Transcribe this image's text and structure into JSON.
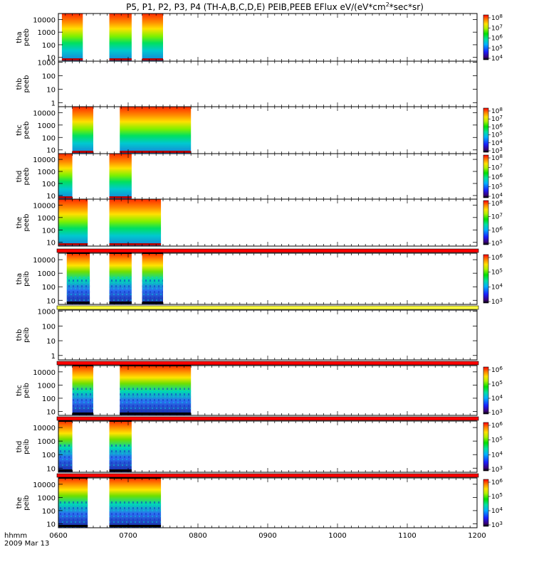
{
  "chart_data": {
    "type": "heatmap",
    "title": "P5, P1, P2, P3, P4 (TH-A,B,C,D,E) PEIB,PEEB EFlux eV/(eV*cm^2*sec*sr)",
    "title_parts": {
      "main": "P5, P1, P2, P3, P4 (TH-A,B,C,D,E) PEIB,PEEB EFlux eV/(eV*cm",
      "sup": "2",
      "tail": "*sec*sr)"
    },
    "x_axis": {
      "tick_labels": [
        "0600",
        "0700",
        "0800",
        "0900",
        "1000",
        "1100",
        "1200"
      ],
      "tick_values_hours": [
        6,
        7,
        8,
        9,
        10,
        11,
        12
      ],
      "xlim_hours": [
        6,
        12
      ],
      "label": "hhmm",
      "date": "2009 Mar 13"
    },
    "colormap": "rainbow",
    "panels": [
      {
        "id": "tha-peeb",
        "ylabel": [
          "tha",
          "peeb"
        ],
        "y_ticks": [
          "10000",
          "1000",
          "100",
          "10"
        ],
        "ylim": [
          5,
          30000
        ],
        "colorbar": {
          "tick_labels": [
            "10^8",
            "10^7",
            "10^6",
            "10^5",
            "10^4"
          ]
        },
        "data_intervals_hours": [
          [
            6.05,
            6.35
          ],
          [
            6.73,
            7.05
          ],
          [
            7.2,
            7.5
          ]
        ]
      },
      {
        "id": "thb-peeb",
        "ylabel": [
          "thb",
          "peeb"
        ],
        "y_ticks": [
          "1000",
          "100",
          "10",
          "1"
        ],
        "ylim": [
          0.5,
          1200
        ],
        "colorbar": null,
        "data_intervals_hours": []
      },
      {
        "id": "thc-peeb",
        "ylabel": [
          "thc",
          "peeb"
        ],
        "y_ticks": [
          "10000",
          "1000",
          "100",
          "10"
        ],
        "ylim": [
          5,
          30000
        ],
        "colorbar": {
          "tick_labels": [
            "10^8",
            "10^7",
            "10^6",
            "10^5",
            "10^4",
            "10^3"
          ]
        },
        "data_intervals_hours": [
          [
            6.2,
            6.5
          ],
          [
            6.88,
            7.9
          ]
        ]
      },
      {
        "id": "thd-peeb",
        "ylabel": [
          "thd",
          "peeb"
        ],
        "y_ticks": [
          "10000",
          "1000",
          "100",
          "10"
        ],
        "ylim": [
          5,
          30000
        ],
        "colorbar": {
          "tick_labels": [
            "10^8",
            "10^7",
            "10^6",
            "10^5",
            "10^4"
          ]
        },
        "data_intervals_hours": [
          [
            6.0,
            6.2
          ],
          [
            6.73,
            7.05
          ]
        ]
      },
      {
        "id": "the-peeb",
        "ylabel": [
          "the",
          "peeb"
        ],
        "y_ticks": [
          "10000",
          "1000",
          "100",
          "10"
        ],
        "ylim": [
          5,
          30000
        ],
        "colorbar": {
          "tick_labels": [
            "10^8",
            "10^7",
            "10^6",
            "10^5"
          ]
        },
        "data_intervals_hours": [
          [
            6.0,
            6.42
          ],
          [
            6.73,
            7.47
          ]
        ]
      },
      {
        "id": "tha-peib",
        "ylabel": [
          "tha",
          "peib"
        ],
        "y_ticks": [
          "10000",
          "1000",
          "100",
          "10"
        ],
        "ylim": [
          5,
          30000
        ],
        "colorbar": {
          "tick_labels": [
            "10^6",
            "10^5",
            "10^4",
            "10^3"
          ]
        },
        "data_intervals_hours": [
          [
            6.12,
            6.45
          ],
          [
            6.73,
            7.05
          ],
          [
            7.2,
            7.5
          ]
        ],
        "top_bar_color": "red"
      },
      {
        "id": "thb-peib",
        "ylabel": [
          "thb",
          "peib"
        ],
        "y_ticks": [
          "1000",
          "100",
          "10",
          "1"
        ],
        "ylim": [
          0.5,
          1200
        ],
        "colorbar": null,
        "data_intervals_hours": [],
        "top_bar_color": "yellow"
      },
      {
        "id": "thc-peib",
        "ylabel": [
          "thc",
          "peib"
        ],
        "y_ticks": [
          "10000",
          "1000",
          "100",
          "10"
        ],
        "ylim": [
          5,
          30000
        ],
        "colorbar": {
          "tick_labels": [
            "10^6",
            "10^5",
            "10^4",
            "10^3"
          ]
        },
        "data_intervals_hours": [
          [
            6.2,
            6.5
          ],
          [
            6.88,
            7.9
          ]
        ],
        "top_bar_color": "red"
      },
      {
        "id": "thd-peib",
        "ylabel": [
          "thd",
          "peib"
        ],
        "y_ticks": [
          "10000",
          "1000",
          "100",
          "10"
        ],
        "ylim": [
          5,
          30000
        ],
        "colorbar": {
          "tick_labels": [
            "10^6",
            "10^5",
            "10^4",
            "10^3"
          ]
        },
        "data_intervals_hours": [
          [
            6.0,
            6.2
          ],
          [
            6.73,
            7.05
          ]
        ],
        "top_bar_color": "red"
      },
      {
        "id": "the-peib",
        "ylabel": [
          "the",
          "peib"
        ],
        "y_ticks": [
          "10000",
          "1000",
          "100",
          "10"
        ],
        "ylim": [
          5,
          30000
        ],
        "colorbar": {
          "tick_labels": [
            "10^6",
            "10^5",
            "10^4",
            "10^3"
          ]
        },
        "data_intervals_hours": [
          [
            6.0,
            6.42
          ],
          [
            6.73,
            7.47
          ]
        ],
        "top_bar_color": "red"
      }
    ]
  }
}
